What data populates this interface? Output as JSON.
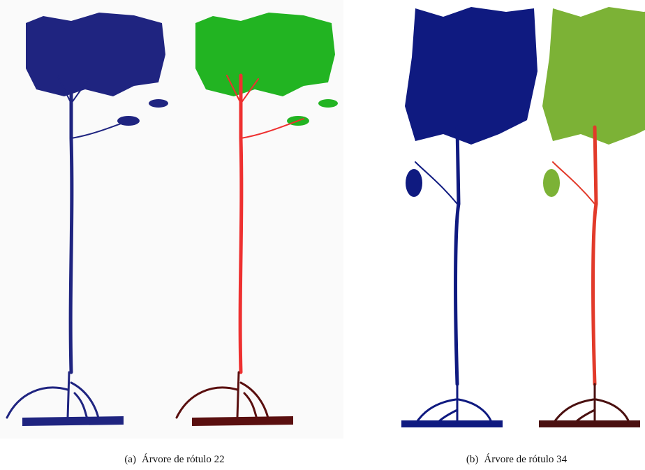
{
  "figure": {
    "subfigures": [
      {
        "label": "(a)",
        "caption": "Árvore de rótulo 22"
      },
      {
        "label": "(b)",
        "caption": "Árvore de rótulo 34"
      }
    ]
  }
}
